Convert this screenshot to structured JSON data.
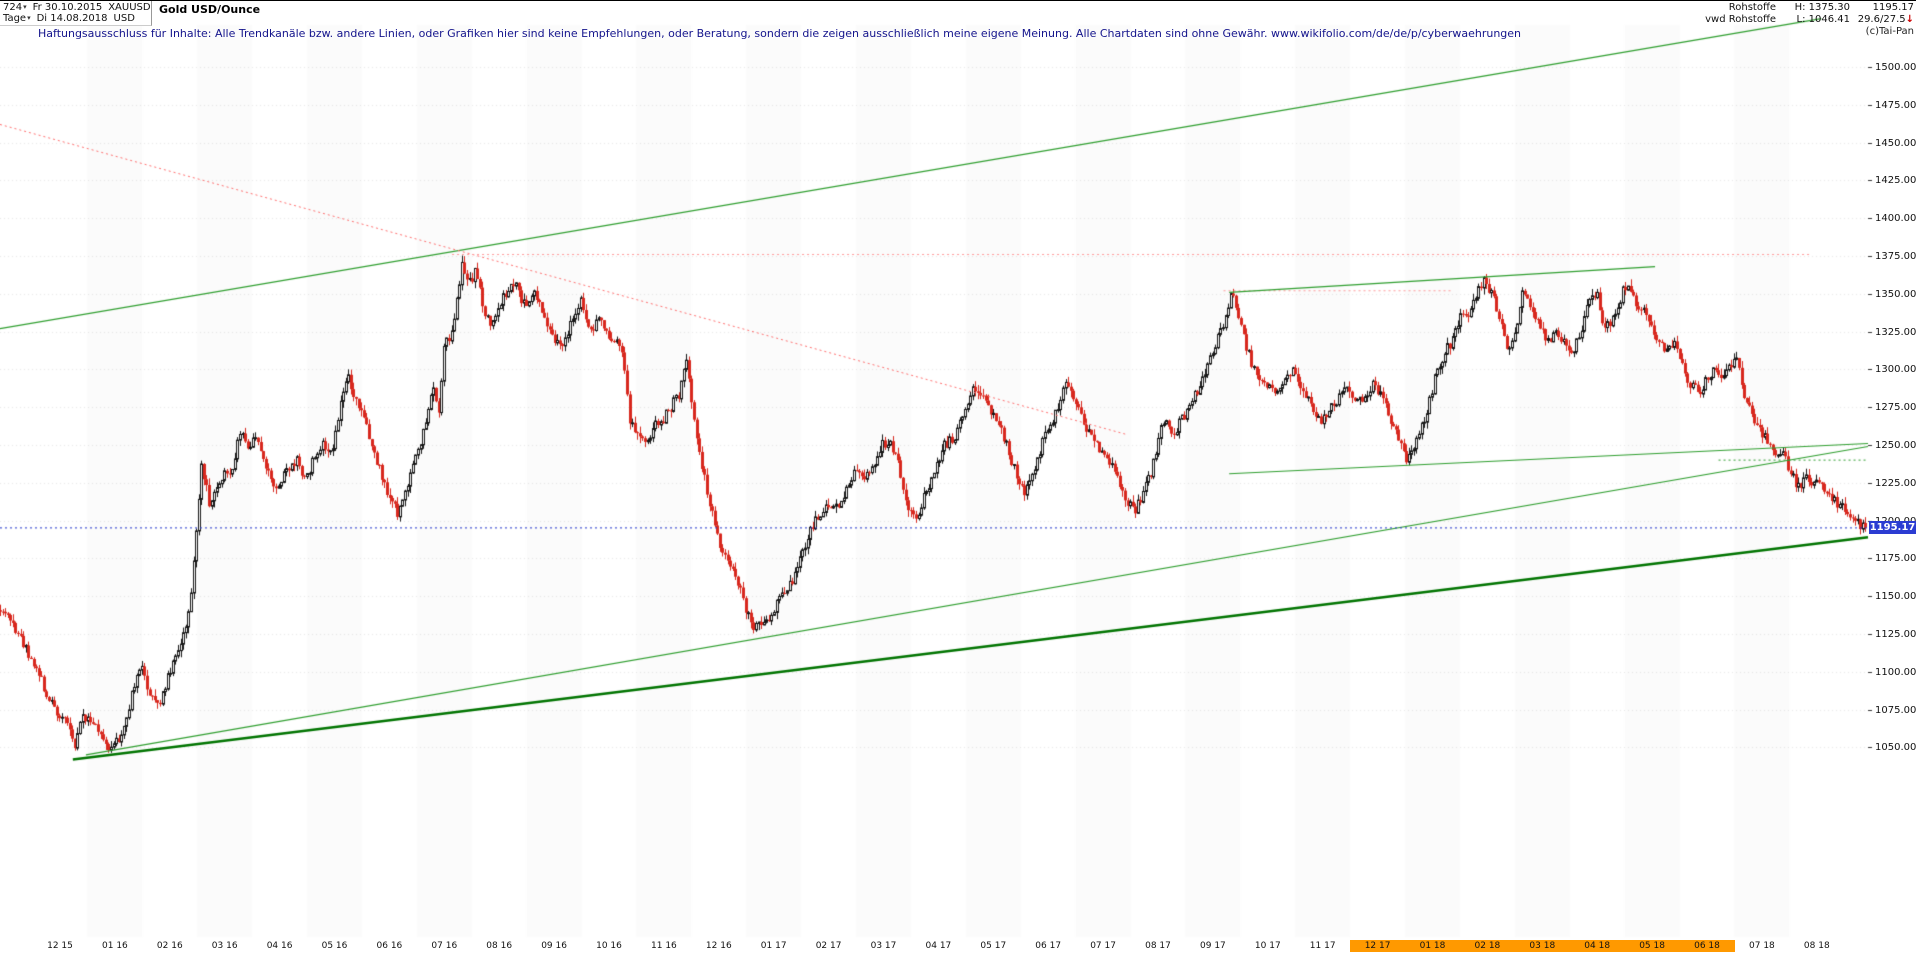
{
  "header": {
    "left": {
      "bar_count": "724",
      "start_label": "Fr 30.10.2015",
      "symbol": "XAUUSD",
      "instrument_name": "Gold USD/Ounce",
      "period": "Tage",
      "end_label": "Di 14.08.2018",
      "currency": "USD"
    },
    "right": {
      "group": "Rohstoffe",
      "source": "vwd Rohstoffe",
      "high_label": "H: 1375.30",
      "low_label": "L: 1046.41",
      "last_price": "1195.17",
      "indicator": "29.6/27.5",
      "indicator_arrow": "↓",
      "copyright": "(c)Tai-Pan"
    },
    "disclaimer": "Haftungsausschluss für Inhalte: Alle Trendkanäle bzw. andere Linien, oder Grafiken hier sind keine Empfehlungen, oder Beratung, sondern die zeigen ausschließlich meine eigene Meinung. Alle Chartdaten sind ohne Gewähr.   www.wikifolio.com/de/de/p/cyberwaehrungen"
  },
  "chart_data": {
    "type": "candlestick",
    "instrument": "XAUUSD Gold USD/Ounce",
    "period": "daily",
    "bars": 724,
    "high": 1375.3,
    "low": 1046.41,
    "current_price": 1195.17,
    "current_price_label": "1195.17",
    "high_anchor": 0.248,
    "low_anchor": 0.06,
    "y_axis": {
      "min": 1050,
      "max": 1500,
      "step": 25,
      "labels": [
        "1500.00",
        "1475.00",
        "1450.00",
        "1425.00",
        "1400.00",
        "1375.00",
        "1350.00",
        "1325.00",
        "1300.00",
        "1275.00",
        "1250.00",
        "1225.00",
        "1200.00",
        "1175.00",
        "1150.00",
        "1125.00",
        "1100.00",
        "1075.00",
        "1050.00"
      ]
    },
    "x_axis": {
      "labels": [
        {
          "label": "12 15",
          "highlight": false
        },
        {
          "label": "01 16",
          "highlight": false
        },
        {
          "label": "02 16",
          "highlight": false
        },
        {
          "label": "03 16",
          "highlight": false
        },
        {
          "label": "04 16",
          "highlight": false
        },
        {
          "label": "05 16",
          "highlight": false
        },
        {
          "label": "06 16",
          "highlight": false
        },
        {
          "label": "07 16",
          "highlight": false
        },
        {
          "label": "08 16",
          "highlight": false
        },
        {
          "label": "09 16",
          "highlight": false
        },
        {
          "label": "10 16",
          "highlight": false
        },
        {
          "label": "11 16",
          "highlight": false
        },
        {
          "label": "12 16",
          "highlight": false
        },
        {
          "label": "01 17",
          "highlight": false
        },
        {
          "label": "02 17",
          "highlight": false
        },
        {
          "label": "03 17",
          "highlight": false
        },
        {
          "label": "04 17",
          "highlight": false
        },
        {
          "label": "05 17",
          "highlight": false
        },
        {
          "label": "06 17",
          "highlight": false
        },
        {
          "label": "07 17",
          "highlight": false
        },
        {
          "label": "08 17",
          "highlight": false
        },
        {
          "label": "09 17",
          "highlight": false
        },
        {
          "label": "10 17",
          "highlight": false
        },
        {
          "label": "11 17",
          "highlight": false
        },
        {
          "label": "12 17",
          "highlight": true
        },
        {
          "label": "01 18",
          "highlight": true
        },
        {
          "label": "02 18",
          "highlight": true
        },
        {
          "label": "03 18",
          "highlight": true
        },
        {
          "label": "04 18",
          "highlight": true
        },
        {
          "label": "05 18",
          "highlight": true
        },
        {
          "label": "06 18",
          "highlight": true
        },
        {
          "label": "07 18",
          "highlight": false
        },
        {
          "label": "08 18",
          "highlight": false
        }
      ]
    },
    "price_path": [
      [
        0.0,
        1142
      ],
      [
        0.006,
        1134
      ],
      [
        0.012,
        1120
      ],
      [
        0.018,
        1106
      ],
      [
        0.024,
        1088
      ],
      [
        0.03,
        1074
      ],
      [
        0.036,
        1065
      ],
      [
        0.04,
        1050
      ],
      [
        0.044,
        1072
      ],
      [
        0.05,
        1066
      ],
      [
        0.056,
        1054
      ],
      [
        0.06,
        1048
      ],
      [
        0.066,
        1062
      ],
      [
        0.072,
        1092
      ],
      [
        0.076,
        1102
      ],
      [
        0.08,
        1087
      ],
      [
        0.085,
        1078
      ],
      [
        0.09,
        1096
      ],
      [
        0.095,
        1112
      ],
      [
        0.099,
        1128
      ],
      [
        0.102,
        1146
      ],
      [
        0.105,
        1192
      ],
      [
        0.108,
        1240
      ],
      [
        0.112,
        1210
      ],
      [
        0.116,
        1222
      ],
      [
        0.12,
        1232
      ],
      [
        0.125,
        1234
      ],
      [
        0.129,
        1262
      ],
      [
        0.133,
        1246
      ],
      [
        0.138,
        1256
      ],
      [
        0.143,
        1232
      ],
      [
        0.148,
        1222
      ],
      [
        0.154,
        1232
      ],
      [
        0.159,
        1242
      ],
      [
        0.163,
        1226
      ],
      [
        0.168,
        1240
      ],
      [
        0.173,
        1252
      ],
      [
        0.178,
        1246
      ],
      [
        0.181,
        1266
      ],
      [
        0.184,
        1288
      ],
      [
        0.186,
        1298
      ],
      [
        0.19,
        1280
      ],
      [
        0.195,
        1266
      ],
      [
        0.2,
        1248
      ],
      [
        0.205,
        1228
      ],
      [
        0.21,
        1212
      ],
      [
        0.213,
        1205
      ],
      [
        0.218,
        1222
      ],
      [
        0.223,
        1242
      ],
      [
        0.228,
        1262
      ],
      [
        0.232,
        1288
      ],
      [
        0.235,
        1270
      ],
      [
        0.238,
        1316
      ],
      [
        0.242,
        1322
      ],
      [
        0.245,
        1346
      ],
      [
        0.248,
        1371
      ],
      [
        0.251,
        1356
      ],
      [
        0.255,
        1366
      ],
      [
        0.259,
        1340
      ],
      [
        0.263,
        1330
      ],
      [
        0.267,
        1342
      ],
      [
        0.272,
        1351
      ],
      [
        0.276,
        1356
      ],
      [
        0.281,
        1342
      ],
      [
        0.286,
        1352
      ],
      [
        0.291,
        1338
      ],
      [
        0.296,
        1324
      ],
      [
        0.301,
        1312
      ],
      [
        0.306,
        1330
      ],
      [
        0.311,
        1346
      ],
      [
        0.316,
        1324
      ],
      [
        0.321,
        1336
      ],
      [
        0.326,
        1320
      ],
      [
        0.331,
        1316
      ],
      [
        0.334,
        1308
      ],
      [
        0.337,
        1268
      ],
      [
        0.341,
        1256
      ],
      [
        0.346,
        1250
      ],
      [
        0.351,
        1262
      ],
      [
        0.356,
        1268
      ],
      [
        0.36,
        1276
      ],
      [
        0.364,
        1284
      ],
      [
        0.368,
        1308
      ],
      [
        0.372,
        1266
      ],
      [
        0.376,
        1236
      ],
      [
        0.38,
        1214
      ],
      [
        0.384,
        1190
      ],
      [
        0.39,
        1174
      ],
      [
        0.395,
        1162
      ],
      [
        0.4,
        1140
      ],
      [
        0.404,
        1128
      ],
      [
        0.408,
        1132
      ],
      [
        0.412,
        1136
      ],
      [
        0.416,
        1144
      ],
      [
        0.42,
        1152
      ],
      [
        0.425,
        1162
      ],
      [
        0.43,
        1180
      ],
      [
        0.435,
        1196
      ],
      [
        0.44,
        1204
      ],
      [
        0.444,
        1212
      ],
      [
        0.449,
        1211
      ],
      [
        0.454,
        1222
      ],
      [
        0.459,
        1234
      ],
      [
        0.464,
        1228
      ],
      [
        0.469,
        1240
      ],
      [
        0.474,
        1252
      ],
      [
        0.478,
        1249
      ],
      [
        0.482,
        1236
      ],
      [
        0.486,
        1212
      ],
      [
        0.49,
        1200
      ],
      [
        0.495,
        1214
      ],
      [
        0.5,
        1230
      ],
      [
        0.506,
        1250
      ],
      [
        0.511,
        1254
      ],
      [
        0.516,
        1268
      ],
      [
        0.521,
        1286
      ],
      [
        0.526,
        1282
      ],
      [
        0.531,
        1272
      ],
      [
        0.535,
        1266
      ],
      [
        0.54,
        1248
      ],
      [
        0.545,
        1228
      ],
      [
        0.549,
        1216
      ],
      [
        0.554,
        1232
      ],
      [
        0.559,
        1252
      ],
      [
        0.565,
        1268
      ],
      [
        0.569,
        1282
      ],
      [
        0.572,
        1294
      ],
      [
        0.577,
        1278
      ],
      [
        0.582,
        1262
      ],
      [
        0.588,
        1250
      ],
      [
        0.594,
        1242
      ],
      [
        0.599,
        1228
      ],
      [
        0.604,
        1212
      ],
      [
        0.608,
        1206
      ],
      [
        0.613,
        1220
      ],
      [
        0.618,
        1236
      ],
      [
        0.624,
        1268
      ],
      [
        0.629,
        1258
      ],
      [
        0.634,
        1268
      ],
      [
        0.639,
        1282
      ],
      [
        0.644,
        1290
      ],
      [
        0.648,
        1306
      ],
      [
        0.653,
        1322
      ],
      [
        0.657,
        1334
      ],
      [
        0.66,
        1350
      ],
      [
        0.664,
        1334
      ],
      [
        0.668,
        1316
      ],
      [
        0.672,
        1300
      ],
      [
        0.677,
        1294
      ],
      [
        0.683,
        1282
      ],
      [
        0.688,
        1290
      ],
      [
        0.693,
        1302
      ],
      [
        0.698,
        1288
      ],
      [
        0.703,
        1276
      ],
      [
        0.707,
        1266
      ],
      [
        0.712,
        1272
      ],
      [
        0.717,
        1280
      ],
      [
        0.722,
        1288
      ],
      [
        0.727,
        1276
      ],
      [
        0.732,
        1284
      ],
      [
        0.737,
        1292
      ],
      [
        0.742,
        1276
      ],
      [
        0.746,
        1266
      ],
      [
        0.75,
        1252
      ],
      [
        0.754,
        1240
      ],
      [
        0.759,
        1250
      ],
      [
        0.764,
        1268
      ],
      [
        0.767,
        1284
      ],
      [
        0.771,
        1302
      ],
      [
        0.775,
        1312
      ],
      [
        0.779,
        1320
      ],
      [
        0.783,
        1338
      ],
      [
        0.787,
        1334
      ],
      [
        0.791,
        1348
      ],
      [
        0.795,
        1360
      ],
      [
        0.801,
        1346
      ],
      [
        0.805,
        1330
      ],
      [
        0.808,
        1312
      ],
      [
        0.812,
        1322
      ],
      [
        0.816,
        1352
      ],
      [
        0.821,
        1340
      ],
      [
        0.826,
        1328
      ],
      [
        0.83,
        1318
      ],
      [
        0.834,
        1326
      ],
      [
        0.838,
        1318
      ],
      [
        0.842,
        1310
      ],
      [
        0.847,
        1324
      ],
      [
        0.852,
        1346
      ],
      [
        0.856,
        1352
      ],
      [
        0.86,
        1326
      ],
      [
        0.864,
        1334
      ],
      [
        0.868,
        1344
      ],
      [
        0.871,
        1356
      ],
      [
        0.875,
        1348
      ],
      [
        0.88,
        1340
      ],
      [
        0.884,
        1332
      ],
      [
        0.889,
        1316
      ],
      [
        0.893,
        1312
      ],
      [
        0.897,
        1318
      ],
      [
        0.901,
        1304
      ],
      [
        0.906,
        1290
      ],
      [
        0.911,
        1286
      ],
      [
        0.915,
        1294
      ],
      [
        0.919,
        1300
      ],
      [
        0.923,
        1296
      ],
      [
        0.927,
        1302
      ],
      [
        0.931,
        1306
      ],
      [
        0.935,
        1282
      ],
      [
        0.94,
        1268
      ],
      [
        0.944,
        1258
      ],
      [
        0.948,
        1252
      ],
      [
        0.952,
        1246
      ],
      [
        0.956,
        1242
      ],
      [
        0.96,
        1232
      ],
      [
        0.964,
        1222
      ],
      [
        0.968,
        1228
      ],
      [
        0.973,
        1224
      ],
      [
        0.978,
        1222
      ],
      [
        0.982,
        1214
      ],
      [
        0.986,
        1210
      ],
      [
        0.99,
        1206
      ],
      [
        0.994,
        1200
      ],
      [
        1.0,
        1195
      ]
    ],
    "trendlines": [
      {
        "name": "support-major",
        "color": "#007400",
        "width": 2.5,
        "dash": null,
        "x1": 0.039,
        "p1": 1042,
        "x2": 1.0,
        "p2": 1189
      },
      {
        "name": "support-secondary",
        "color": "#2e9e2e",
        "width": 1.2,
        "dash": null,
        "x1": 0.046,
        "p1": 1045,
        "x2": 1.0,
        "p2": 1249
      },
      {
        "name": "channel-top",
        "color": "#2e9e2e",
        "width": 1.2,
        "dash": null,
        "x1": 0.0,
        "p1": 1327,
        "x2": 0.975,
        "p2": 1532
      },
      {
        "name": "resistance-descending",
        "color": "#ff7070",
        "width": 1,
        "dash": [
          2,
          3
        ],
        "x1": 0.0,
        "p1": 1462,
        "x2": 0.603,
        "p2": 1257
      },
      {
        "name": "horizontal-1375",
        "color": "#ff9a9a",
        "width": 1,
        "dash": [
          2,
          3
        ],
        "x1": 0.242,
        "p1": 1376,
        "x2": 0.97,
        "p2": 1376
      },
      {
        "name": "horizontal-1352",
        "color": "#ff9a9a",
        "width": 1,
        "dash": [
          2,
          3
        ],
        "x1": 0.655,
        "p1": 1352,
        "x2": 0.778,
        "p2": 1352
      },
      {
        "name": "resistance-top-right",
        "color": "#2e9e2e",
        "width": 1.2,
        "dash": null,
        "x1": 0.658,
        "p1": 1351,
        "x2": 0.886,
        "p2": 1368
      },
      {
        "name": "support-mid-right",
        "color": "#2e9e2e",
        "width": 1.2,
        "dash": null,
        "x1": 0.658,
        "p1": 1231,
        "x2": 1.0,
        "p2": 1251
      },
      {
        "name": "horizontal-1240-dotted",
        "color": "#2e9e2e",
        "width": 1,
        "dash": [
          2,
          3
        ],
        "x1": 0.92,
        "p1": 1240,
        "x2": 1.0,
        "p2": 1240
      },
      {
        "name": "current-price-line",
        "color": "#2233cc",
        "width": 1,
        "dash": [
          2,
          3
        ],
        "x1": 0.0,
        "p1": 1195.17,
        "x2": 1.0,
        "p2": 1195.17
      }
    ],
    "colors": {
      "up": "#161616",
      "down": "#d8281e",
      "badge": "#2b3cd2",
      "highlight": "#ff9900",
      "grid": "rgba(100,100,100,0.14)",
      "stripe": "rgba(0,0,0,0.016)"
    }
  }
}
